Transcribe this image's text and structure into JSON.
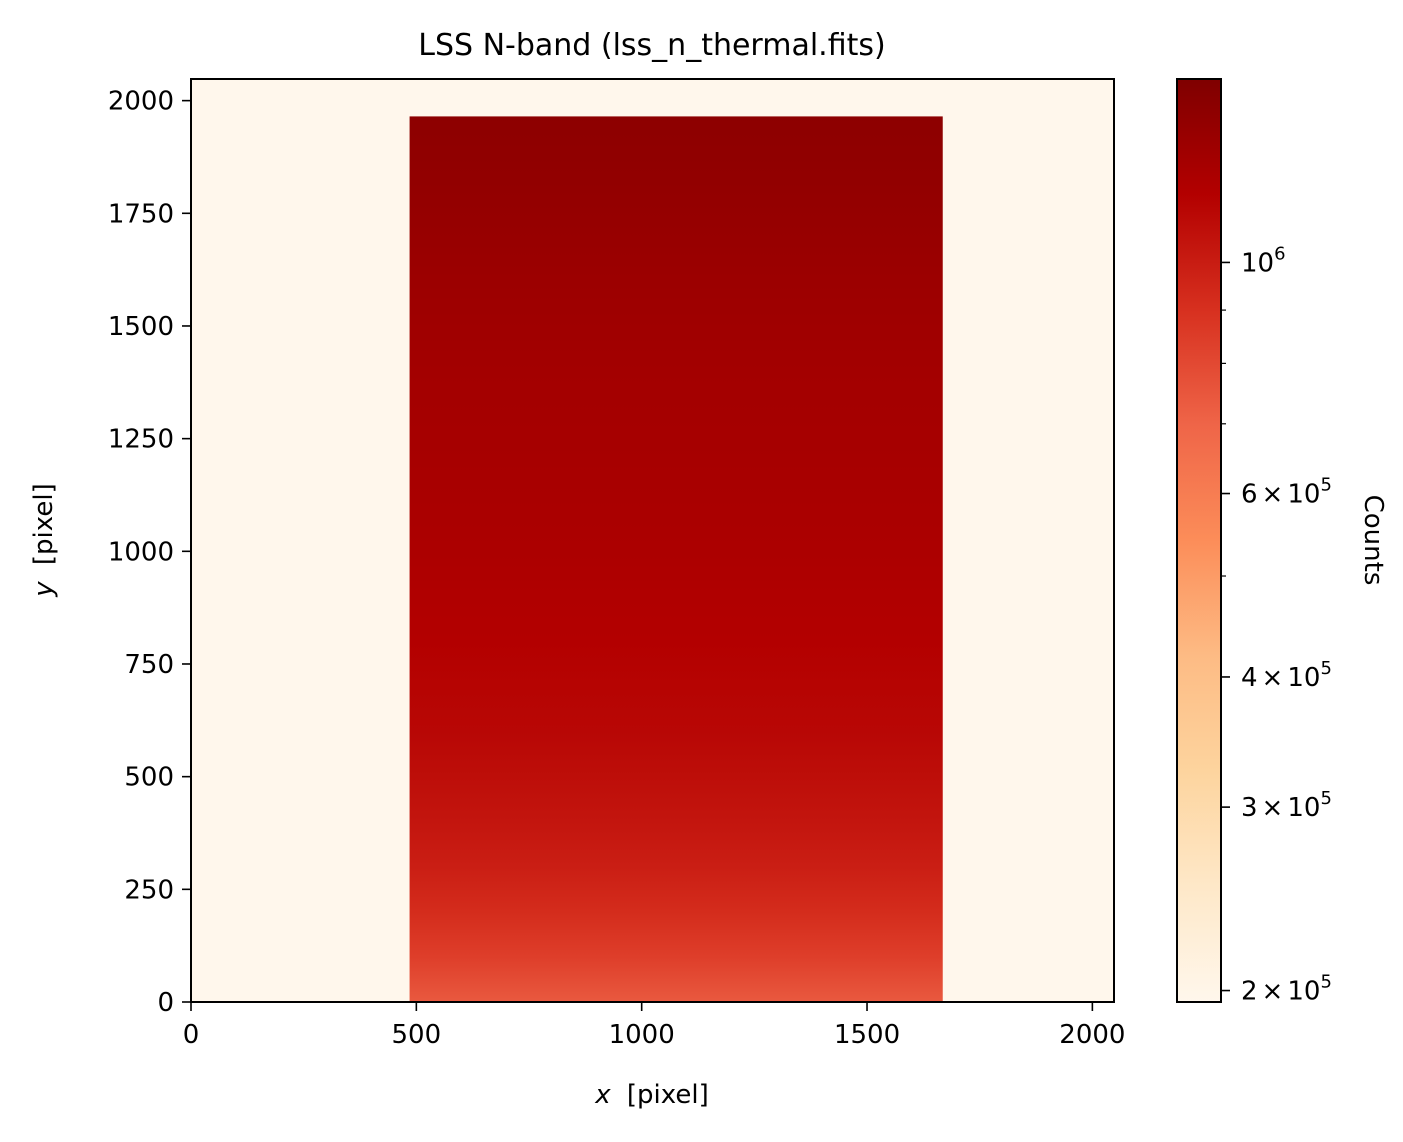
{
  "chart_data": {
    "type": "heatmap",
    "title": "LSS N-band (lss_n_thermal.fits)",
    "xlabel": {
      "var": "x",
      "unit": "[pixel]"
    },
    "ylabel": {
      "var": "y",
      "unit": "[pixel]"
    },
    "xlim": [
      0,
      2048
    ],
    "ylim": [
      0,
      2048
    ],
    "xticks": [
      0,
      500,
      1000,
      1500,
      2000
    ],
    "yticks": [
      0,
      250,
      500,
      750,
      1000,
      1250,
      1500,
      1750,
      2000
    ],
    "colormap": "OrRd",
    "colorbar": {
      "label": "Counts",
      "scale": "log",
      "range": [
        195000,
        1500000
      ],
      "ticks": [
        {
          "value": 200000,
          "mantissa": "2",
          "base": "10",
          "exp": "5"
        },
        {
          "value": 300000,
          "mantissa": "3",
          "base": "10",
          "exp": "5"
        },
        {
          "value": 400000,
          "mantissa": "4",
          "base": "10",
          "exp": "5"
        },
        {
          "value": 600000,
          "mantissa": "6",
          "base": "10",
          "exp": "5"
        },
        {
          "value": 1000000,
          "mantissa": "",
          "base": "10",
          "exp": "6"
        }
      ],
      "minor_ticks": [
        500000,
        700000,
        800000,
        900000
      ]
    },
    "background_value": 195000,
    "slit_region": {
      "x_range": [
        485,
        1668
      ],
      "y_range": [
        0,
        1965
      ],
      "profile_y": [
        0,
        100,
        200,
        300,
        400,
        500,
        600,
        700,
        800,
        900,
        1000,
        1200,
        1400,
        1600,
        1800,
        1965
      ],
      "profile_counts": [
        740000,
        840000,
        920000,
        990000,
        1040000,
        1080000,
        1120000,
        1140000,
        1160000,
        1180000,
        1200000,
        1230000,
        1260000,
        1300000,
        1360000,
        1400000
      ]
    }
  }
}
